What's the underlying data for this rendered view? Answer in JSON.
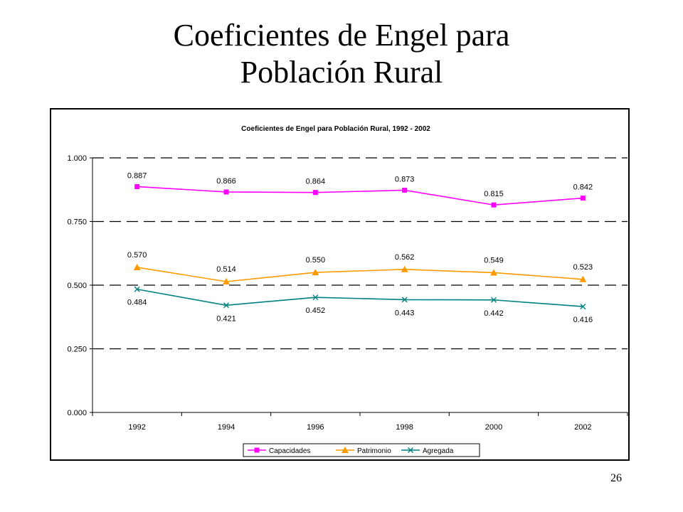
{
  "slide": {
    "title_line1": "Coeficientes de Engel para",
    "title_line2": "Población Rural",
    "page_number": "26"
  },
  "chart_data": {
    "type": "line",
    "title": "Coeficientes de Engel para Población Rural, 1992 - 2002",
    "categories": [
      "1992",
      "1994",
      "1996",
      "1998",
      "2000",
      "2002"
    ],
    "y_ticks": [
      "0.000",
      "0.250",
      "0.500",
      "0.750",
      "1.000"
    ],
    "ylim": [
      0,
      1
    ],
    "grid": "dashed horizontal",
    "legend_position": "bottom",
    "series": [
      {
        "name": "Capacidades",
        "color": "#ff00ff",
        "marker": "square",
        "values": [
          0.887,
          0.866,
          0.864,
          0.873,
          0.815,
          0.842
        ],
        "labels": [
          "0.887",
          "0.866",
          "0.864",
          "0.873",
          "0.815",
          "0.842"
        ]
      },
      {
        "name": "Patrimonio",
        "color": "#ff9900",
        "marker": "triangle",
        "values": [
          0.57,
          0.514,
          0.55,
          0.562,
          0.549,
          0.523
        ],
        "labels": [
          "0.570",
          "0.514",
          "0.550",
          "0.562",
          "0.549",
          "0.523"
        ]
      },
      {
        "name": "Agregada",
        "color": "#008080",
        "marker": "x",
        "values": [
          0.484,
          0.421,
          0.452,
          0.443,
          0.442,
          0.416
        ],
        "labels": [
          "0.484",
          "0.421",
          "0.452",
          "0.443",
          "0.442",
          "0.416"
        ]
      }
    ]
  }
}
